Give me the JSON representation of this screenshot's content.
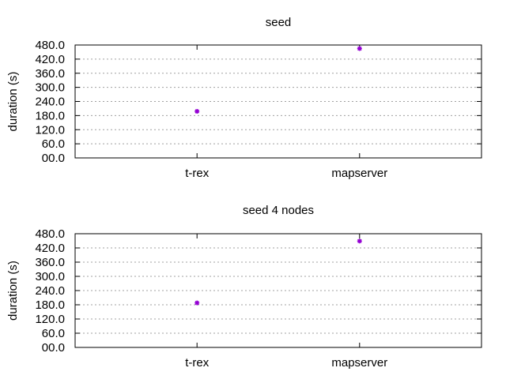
{
  "chart_data": [
    {
      "type": "scatter",
      "title": "seed",
      "xlabel": "",
      "ylabel": "duration (s)",
      "categories": [
        "t-rex",
        "mapserver"
      ],
      "values": [
        198,
        465
      ],
      "ylim": [
        0,
        480
      ],
      "yticks": [
        "00.0",
        "60.0",
        "120.0",
        "180.0",
        "240.0",
        "300.0",
        "360.0",
        "420.0",
        "480.0"
      ],
      "grid": true,
      "marker_color": "#9400d3"
    },
    {
      "type": "scatter",
      "title": "seed 4 nodes",
      "xlabel": "",
      "ylabel": "duration (s)",
      "categories": [
        "t-rex",
        "mapserver"
      ],
      "values": [
        188,
        449
      ],
      "ylim": [
        0,
        480
      ],
      "yticks": [
        "00.0",
        "60.0",
        "120.0",
        "180.0",
        "240.0",
        "300.0",
        "360.0",
        "420.0",
        "480.0"
      ],
      "grid": true,
      "marker_color": "#9400d3"
    }
  ]
}
